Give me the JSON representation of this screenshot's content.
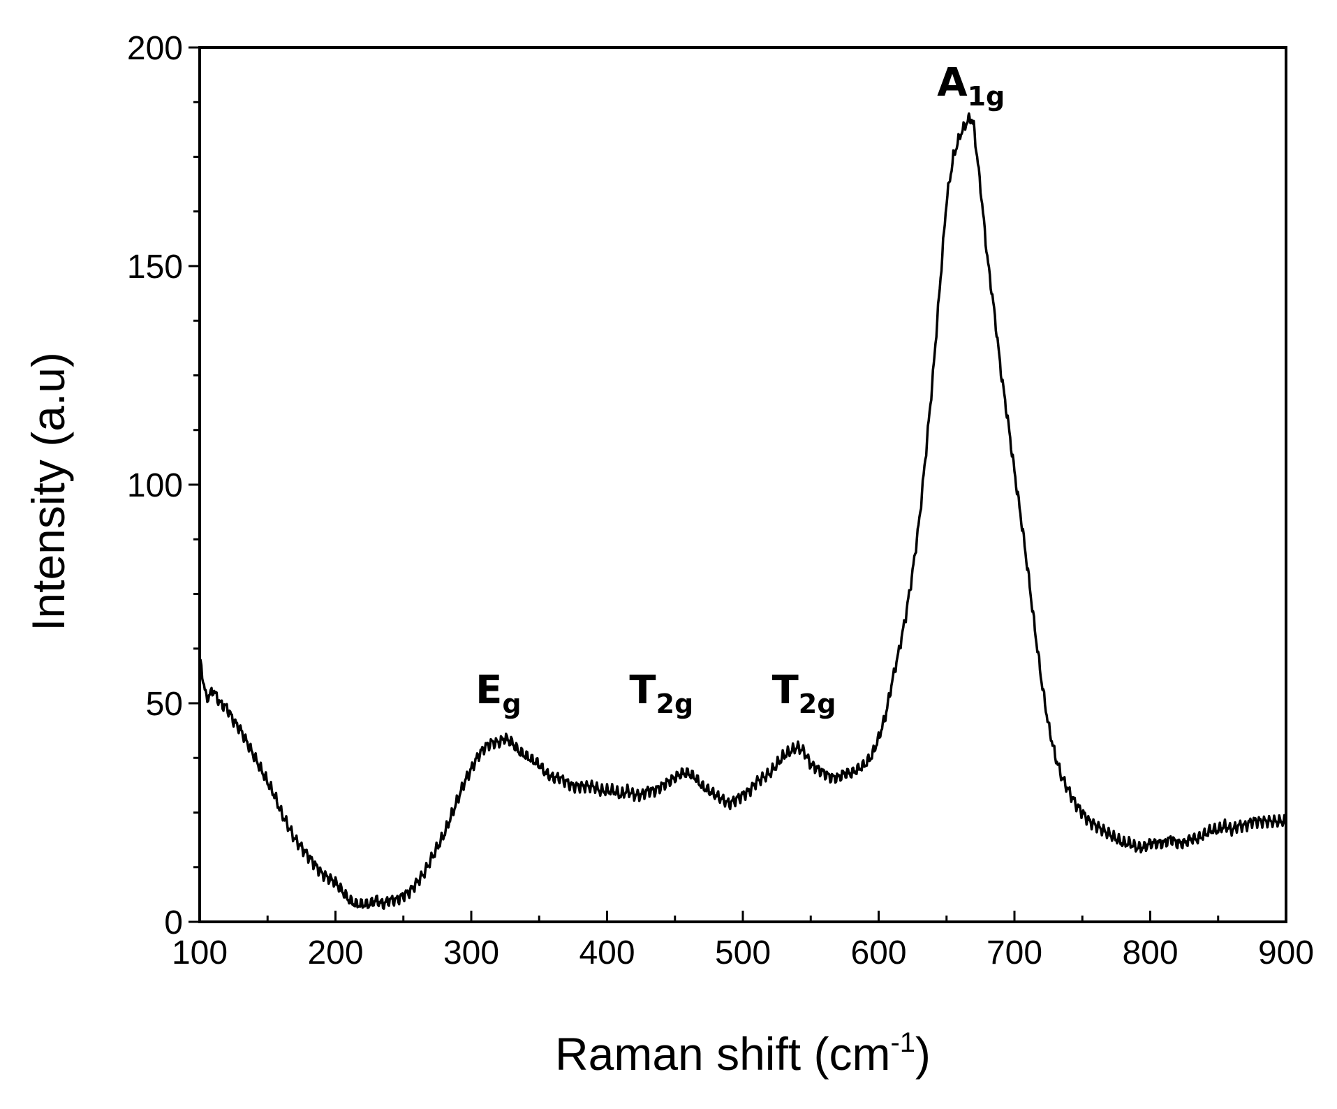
{
  "chart_data": {
    "type": "line",
    "title": "",
    "xlabel": "Raman shift (cm",
    "xlabel_sup": "-1",
    "xlabel_close": ")",
    "ylabel": "Intensity (a.u)",
    "xlim": [
      100,
      900
    ],
    "ylim": [
      0,
      200
    ],
    "x_ticks": [
      100,
      200,
      300,
      400,
      500,
      600,
      700,
      800,
      900
    ],
    "y_ticks": [
      0,
      50,
      100,
      150,
      200
    ],
    "colors": {
      "line": "#000000",
      "axis": "#000000"
    },
    "series": [
      {
        "name": "Raman spectrum",
        "x": [
          100,
          105,
          110,
          115,
          120,
          125,
          130,
          135,
          140,
          145,
          150,
          155,
          160,
          165,
          170,
          175,
          180,
          185,
          190,
          195,
          200,
          205,
          210,
          215,
          220,
          225,
          230,
          235,
          240,
          245,
          250,
          255,
          260,
          265,
          270,
          275,
          280,
          285,
          290,
          295,
          300,
          305,
          310,
          315,
          320,
          325,
          330,
          335,
          340,
          345,
          350,
          355,
          360,
          365,
          370,
          375,
          380,
          385,
          390,
          395,
          400,
          405,
          410,
          415,
          420,
          425,
          430,
          435,
          440,
          445,
          450,
          455,
          460,
          465,
          470,
          475,
          480,
          485,
          490,
          495,
          500,
          505,
          510,
          515,
          520,
          525,
          530,
          535,
          540,
          545,
          550,
          555,
          560,
          565,
          570,
          575,
          580,
          585,
          590,
          595,
          600,
          605,
          610,
          615,
          620,
          625,
          630,
          635,
          640,
          645,
          650,
          655,
          660,
          665,
          668,
          670,
          675,
          680,
          685,
          690,
          695,
          700,
          705,
          710,
          715,
          720,
          725,
          730,
          735,
          740,
          745,
          750,
          755,
          760,
          765,
          770,
          775,
          780,
          785,
          790,
          795,
          800,
          805,
          810,
          815,
          820,
          825,
          830,
          835,
          840,
          845,
          850,
          855,
          860,
          865,
          870,
          875,
          880,
          885,
          890,
          895,
          900
        ],
        "y": [
          60,
          51,
          53,
          50,
          49,
          46,
          44,
          41,
          38,
          35,
          32,
          29,
          25,
          22,
          19,
          17,
          15,
          13,
          11,
          10,
          9,
          7,
          5,
          4,
          4,
          4,
          5,
          4,
          5,
          5,
          6,
          7,
          9,
          11,
          14,
          17,
          20,
          24,
          28,
          32,
          35,
          38,
          40,
          41,
          41,
          42,
          41,
          39,
          38,
          37,
          36,
          34,
          33,
          33,
          32,
          31,
          31,
          31,
          31,
          30,
          30,
          30,
          29,
          30,
          29,
          29,
          30,
          30,
          31,
          32,
          33,
          34,
          34,
          33,
          31,
          30,
          29,
          28,
          27,
          28,
          29,
          30,
          32,
          33,
          34,
          36,
          38,
          39,
          40,
          39,
          36,
          35,
          34,
          33,
          33,
          34,
          34,
          35,
          36,
          38,
          42,
          47,
          55,
          62,
          70,
          80,
          92,
          108,
          125,
          145,
          165,
          175,
          180,
          183,
          184,
          182,
          168,
          152,
          140,
          126,
          115,
          103,
          92,
          80,
          67,
          55,
          45,
          38,
          33,
          30,
          27,
          25,
          23,
          22,
          21,
          20,
          19,
          18,
          18,
          17,
          17,
          18,
          18,
          18,
          19,
          18,
          18,
          19,
          19,
          20,
          21,
          21,
          22,
          21,
          22,
          22,
          23,
          23,
          23,
          23,
          23,
          23
        ]
      }
    ],
    "annotations": [
      {
        "id": "eg",
        "base": "E",
        "sub": "g",
        "x": 320,
        "y": 50
      },
      {
        "id": "t2g-1",
        "base": "T",
        "sub": "2g",
        "x": 440,
        "y": 50
      },
      {
        "id": "t2g-2",
        "base": "T",
        "sub": "2g",
        "x": 545,
        "y": 50
      },
      {
        "id": "a1g",
        "base": "A",
        "sub": "1g",
        "x": 668,
        "y": 189
      }
    ]
  }
}
